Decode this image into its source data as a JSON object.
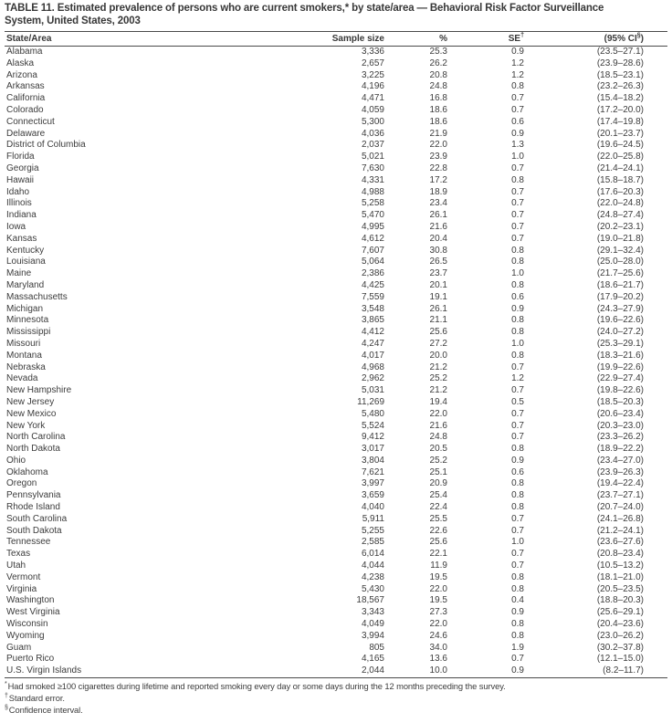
{
  "page": {
    "title_line1": "TABLE 11. Estimated prevalence of persons who are current smokers,* by state/area — Behavioral Risk Factor Surveillance",
    "title_line2": "System, United States, 2003"
  },
  "table": {
    "header": {
      "state": "State/Area",
      "sample": "Sample size",
      "pct": "%",
      "se": "SE",
      "se_sup": "†",
      "ci_pre": "(95% CI",
      "ci_sup": "§",
      "ci_post": ")"
    },
    "rows": [
      [
        "Alabama",
        "3,336",
        "25.3",
        "0.9",
        "(23.5–27.1)"
      ],
      [
        "Alaska",
        "2,657",
        "26.2",
        "1.2",
        "(23.9–28.6)"
      ],
      [
        "Arizona",
        "3,225",
        "20.8",
        "1.2",
        "(18.5–23.1)"
      ],
      [
        "Arkansas",
        "4,196",
        "24.8",
        "0.8",
        "(23.2–26.3)"
      ],
      [
        "California",
        "4,471",
        "16.8",
        "0.7",
        "(15.4–18.2)"
      ],
      [
        "Colorado",
        "4,059",
        "18.6",
        "0.7",
        "(17.2–20.0)"
      ],
      [
        "Connecticut",
        "5,300",
        "18.6",
        "0.6",
        "(17.4–19.8)"
      ],
      [
        "Delaware",
        "4,036",
        "21.9",
        "0.9",
        "(20.1–23.7)"
      ],
      [
        "District of Columbia",
        "2,037",
        "22.0",
        "1.3",
        "(19.6–24.5)"
      ],
      [
        "Florida",
        "5,021",
        "23.9",
        "1.0",
        "(22.0–25.8)"
      ],
      [
        "Georgia",
        "7,630",
        "22.8",
        "0.7",
        "(21.4–24.1)"
      ],
      [
        "Hawaii",
        "4,331",
        "17.2",
        "0.8",
        "(15.8–18.7)"
      ],
      [
        "Idaho",
        "4,988",
        "18.9",
        "0.7",
        "(17.6–20.3)"
      ],
      [
        "Illinois",
        "5,258",
        "23.4",
        "0.7",
        "(22.0–24.8)"
      ],
      [
        "Indiana",
        "5,470",
        "26.1",
        "0.7",
        "(24.8–27.4)"
      ],
      [
        "Iowa",
        "4,995",
        "21.6",
        "0.7",
        "(20.2–23.1)"
      ],
      [
        "Kansas",
        "4,612",
        "20.4",
        "0.7",
        "(19.0–21.8)"
      ],
      [
        "Kentucky",
        "7,607",
        "30.8",
        "0.8",
        "(29.1–32.4)"
      ],
      [
        "Louisiana",
        "5,064",
        "26.5",
        "0.8",
        "(25.0–28.0)"
      ],
      [
        "Maine",
        "2,386",
        "23.7",
        "1.0",
        "(21.7–25.6)"
      ],
      [
        "Maryland",
        "4,425",
        "20.1",
        "0.8",
        "(18.6–21.7)"
      ],
      [
        "Massachusetts",
        "7,559",
        "19.1",
        "0.6",
        "(17.9–20.2)"
      ],
      [
        "Michigan",
        "3,548",
        "26.1",
        "0.9",
        "(24.3–27.9)"
      ],
      [
        "Minnesota",
        "3,865",
        "21.1",
        "0.8",
        "(19.6–22.6)"
      ],
      [
        "Mississippi",
        "4,412",
        "25.6",
        "0.8",
        "(24.0–27.2)"
      ],
      [
        "Missouri",
        "4,247",
        "27.2",
        "1.0",
        "(25.3–29.1)"
      ],
      [
        "Montana",
        "4,017",
        "20.0",
        "0.8",
        "(18.3–21.6)"
      ],
      [
        "Nebraska",
        "4,968",
        "21.2",
        "0.7",
        "(19.9–22.6)"
      ],
      [
        "Nevada",
        "2,962",
        "25.2",
        "1.2",
        "(22.9–27.4)"
      ],
      [
        "New Hampshire",
        "5,031",
        "21.2",
        "0.7",
        "(19.8–22.6)"
      ],
      [
        "New Jersey",
        "11,269",
        "19.4",
        "0.5",
        "(18.5–20.3)"
      ],
      [
        "New Mexico",
        "5,480",
        "22.0",
        "0.7",
        "(20.6–23.4)"
      ],
      [
        "New York",
        "5,524",
        "21.6",
        "0.7",
        "(20.3–23.0)"
      ],
      [
        "North Carolina",
        "9,412",
        "24.8",
        "0.7",
        "(23.3–26.2)"
      ],
      [
        "North Dakota",
        "3,017",
        "20.5",
        "0.8",
        "(18.9–22.2)"
      ],
      [
        "Ohio",
        "3,804",
        "25.2",
        "0.9",
        "(23.4–27.0)"
      ],
      [
        "Oklahoma",
        "7,621",
        "25.1",
        "0.6",
        "(23.9–26.3)"
      ],
      [
        "Oregon",
        "3,997",
        "20.9",
        "0.8",
        "(19.4–22.4)"
      ],
      [
        "Pennsylvania",
        "3,659",
        "25.4",
        "0.8",
        "(23.7–27.1)"
      ],
      [
        "Rhode Island",
        "4,040",
        "22.4",
        "0.8",
        "(20.7–24.0)"
      ],
      [
        "South Carolina",
        "5,911",
        "25.5",
        "0.7",
        "(24.1–26.8)"
      ],
      [
        "South Dakota",
        "5,255",
        "22.6",
        "0.7",
        "(21.2–24.1)"
      ],
      [
        "Tennessee",
        "2,585",
        "25.6",
        "1.0",
        "(23.6–27.6)"
      ],
      [
        "Texas",
        "6,014",
        "22.1",
        "0.7",
        "(20.8–23.4)"
      ],
      [
        "Utah",
        "4,044",
        "11.9",
        "0.7",
        "(10.5–13.2)"
      ],
      [
        "Vermont",
        "4,238",
        "19.5",
        "0.8",
        "(18.1–21.0)"
      ],
      [
        "Virginia",
        "5,430",
        "22.0",
        "0.8",
        "(20.5–23.5)"
      ],
      [
        "Washington",
        "18,567",
        "19.5",
        "0.4",
        "(18.8–20.3)"
      ],
      [
        "West Virginia",
        "3,343",
        "27.3",
        "0.9",
        "(25.6–29.1)"
      ],
      [
        "Wisconsin",
        "4,049",
        "22.0",
        "0.8",
        "(20.4–23.6)"
      ],
      [
        "Wyoming",
        "3,994",
        "24.6",
        "0.8",
        "(23.0–26.2)"
      ],
      [
        "Guam",
        "805",
        "34.0",
        "1.9",
        "(30.2–37.8)"
      ],
      [
        "Puerto Rico",
        "4,165",
        "13.6",
        "0.7",
        "(12.1–15.0)"
      ],
      [
        "U.S. Virgin Islands",
        "2,044",
        "10.0",
        "0.9",
        "(8.2–11.7)"
      ]
    ]
  },
  "footnotes": [
    {
      "sup": "*",
      "text": "Had smoked ≥100 cigarettes during lifetime and reported smoking every day or some days during the 12 months preceding the survey."
    },
    {
      "sup": "†",
      "text": "Standard error."
    },
    {
      "sup": "§",
      "text": "Confidence interval."
    }
  ]
}
